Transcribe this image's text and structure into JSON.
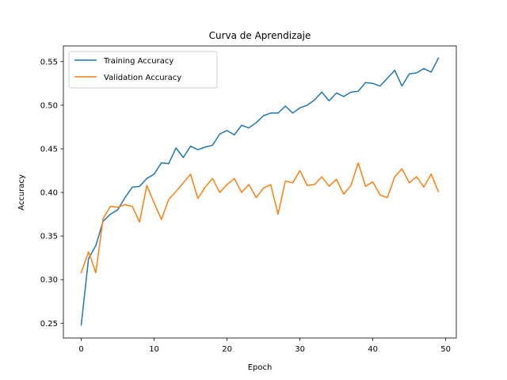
{
  "chart_data": {
    "type": "line",
    "title": "Curva de Aprendizaje",
    "xlabel": "Epoch",
    "ylabel": "Accuracy",
    "xlim": [
      -2.45,
      51.45
    ],
    "ylim": [
      0.233,
      0.568
    ],
    "xticks": [
      0,
      10,
      20,
      30,
      40,
      50
    ],
    "yticks": [
      0.25,
      0.3,
      0.35,
      0.4,
      0.45,
      0.5,
      0.55
    ],
    "ytick_labels": [
      "0.25",
      "0.30",
      "0.35",
      "0.40",
      "0.45",
      "0.50",
      "0.55"
    ],
    "xtick_labels": [
      "0",
      "10",
      "20",
      "30",
      "40",
      "50"
    ],
    "grid": false,
    "legend_position": "top-left",
    "x": [
      0,
      1,
      2,
      3,
      4,
      5,
      6,
      7,
      8,
      9,
      10,
      11,
      12,
      13,
      14,
      15,
      16,
      17,
      18,
      19,
      20,
      21,
      22,
      23,
      24,
      25,
      26,
      27,
      28,
      29,
      30,
      31,
      32,
      33,
      34,
      35,
      36,
      37,
      38,
      39,
      40,
      41,
      42,
      43,
      44,
      45,
      46,
      47,
      48,
      49
    ],
    "series": [
      {
        "name": "Training Accuracy",
        "color": "#1f77b4",
        "values": [
          0.248,
          0.324,
          0.339,
          0.367,
          0.375,
          0.38,
          0.394,
          0.406,
          0.407,
          0.416,
          0.421,
          0.434,
          0.433,
          0.451,
          0.44,
          0.453,
          0.449,
          0.452,
          0.454,
          0.467,
          0.471,
          0.466,
          0.477,
          0.474,
          0.48,
          0.488,
          0.491,
          0.491,
          0.499,
          0.491,
          0.497,
          0.5,
          0.506,
          0.515,
          0.505,
          0.514,
          0.51,
          0.515,
          0.516,
          0.526,
          0.525,
          0.522,
          0.531,
          0.54,
          0.522,
          0.536,
          0.537,
          0.542,
          0.538,
          0.554
        ]
      },
      {
        "name": "Validation Accuracy",
        "color": "#ff7f0e",
        "values": [
          0.308,
          0.332,
          0.308,
          0.37,
          0.384,
          0.383,
          0.386,
          0.384,
          0.366,
          0.408,
          0.388,
          0.369,
          0.392,
          0.401,
          0.411,
          0.421,
          0.393,
          0.406,
          0.416,
          0.4,
          0.409,
          0.416,
          0.4,
          0.409,
          0.394,
          0.405,
          0.409,
          0.375,
          0.413,
          0.411,
          0.425,
          0.408,
          0.409,
          0.418,
          0.407,
          0.415,
          0.398,
          0.408,
          0.434,
          0.407,
          0.412,
          0.397,
          0.394,
          0.418,
          0.427,
          0.411,
          0.418,
          0.406,
          0.421,
          0.401
        ]
      }
    ]
  }
}
